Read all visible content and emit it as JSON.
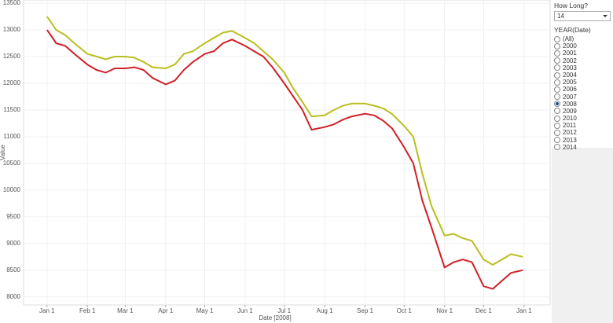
{
  "chart_data": {
    "type": "line",
    "x_label": "Date [2008]",
    "y_label": "Value",
    "x": [
      "2008-01-01",
      "2008-01-08",
      "2008-01-15",
      "2008-01-22",
      "2008-02-01",
      "2008-02-08",
      "2008-02-15",
      "2008-02-22",
      "2008-03-01",
      "2008-03-08",
      "2008-03-15",
      "2008-03-22",
      "2008-04-01",
      "2008-04-08",
      "2008-04-15",
      "2008-04-22",
      "2008-05-01",
      "2008-05-08",
      "2008-05-15",
      "2008-05-22",
      "2008-06-01",
      "2008-06-08",
      "2008-06-15",
      "2008-06-22",
      "2008-07-01",
      "2008-07-08",
      "2008-07-15",
      "2008-07-22",
      "2008-08-01",
      "2008-08-08",
      "2008-08-15",
      "2008-08-22",
      "2008-09-01",
      "2008-09-08",
      "2008-09-15",
      "2008-09-22",
      "2008-10-01",
      "2008-10-08",
      "2008-10-15",
      "2008-10-22",
      "2008-11-01",
      "2008-11-08",
      "2008-11-15",
      "2008-11-22",
      "2008-12-01",
      "2008-12-08",
      "2008-12-15",
      "2008-12-22",
      "2008-12-31"
    ],
    "series": [
      {
        "color": "#b8bf1f",
        "values": [
          13250,
          13000,
          12900,
          12750,
          12550,
          12500,
          12450,
          12500,
          12500,
          12480,
          12400,
          12300,
          12280,
          12350,
          12550,
          12600,
          12750,
          12850,
          12950,
          12980,
          12850,
          12750,
          12600,
          12450,
          12200,
          11900,
          11650,
          11380,
          11400,
          11500,
          11580,
          11620,
          11620,
          11580,
          11530,
          11420,
          11200,
          11000,
          10300,
          9700,
          9150,
          9180,
          9100,
          9050,
          8700,
          8600,
          8700,
          8800,
          8750
        ]
      },
      {
        "color": "#cf2027",
        "values": [
          13000,
          12750,
          12700,
          12550,
          12350,
          12250,
          12200,
          12280,
          12280,
          12300,
          12250,
          12100,
          11980,
          12050,
          12250,
          12400,
          12550,
          12600,
          12750,
          12820,
          12700,
          12600,
          12500,
          12300,
          12000,
          11750,
          11500,
          11130,
          11180,
          11230,
          11320,
          11380,
          11430,
          11400,
          11300,
          11150,
          10800,
          10500,
          9800,
          9300,
          8550,
          8650,
          8700,
          8650,
          8200,
          8150,
          8300,
          8450,
          8500
        ]
      }
    ],
    "xlim": [
      "2007-12-14",
      "2009-01-21"
    ],
    "xticks": [
      {
        "value": "2008-01-01",
        "label": "Jan 1"
      },
      {
        "value": "2008-02-01",
        "label": "Feb 1"
      },
      {
        "value": "2008-03-01",
        "label": "Mar 1"
      },
      {
        "value": "2008-04-01",
        "label": "Apr 1"
      },
      {
        "value": "2008-05-01",
        "label": "May 1"
      },
      {
        "value": "2008-06-01",
        "label": "Jun 1"
      },
      {
        "value": "2008-07-01",
        "label": "Jul 1"
      },
      {
        "value": "2008-08-01",
        "label": "Aug 1"
      },
      {
        "value": "2008-09-01",
        "label": "Sep 1"
      },
      {
        "value": "2008-10-01",
        "label": "Oct 1"
      },
      {
        "value": "2008-11-01",
        "label": "Nov 1"
      },
      {
        "value": "2008-12-01",
        "label": "Dec 1"
      },
      {
        "value": "2009-01-01",
        "label": "Jan 1"
      }
    ],
    "ylim": [
      7850,
      13560
    ],
    "yticks": [
      8000,
      8500,
      9000,
      9500,
      10000,
      10500,
      11000,
      11500,
      12000,
      12500,
      13000,
      13500
    ],
    "grid": true
  },
  "controls": {
    "how_long": {
      "label": "How Long?",
      "value": "14"
    },
    "year_filter": {
      "label": "YEAR(Date)",
      "options": [
        "(All)",
        "2000",
        "2001",
        "2002",
        "2003",
        "2004",
        "2005",
        "2006",
        "2007",
        "2008",
        "2009",
        "2010",
        "2011",
        "2012",
        "2013",
        "2014"
      ],
      "selected": "2008"
    }
  }
}
